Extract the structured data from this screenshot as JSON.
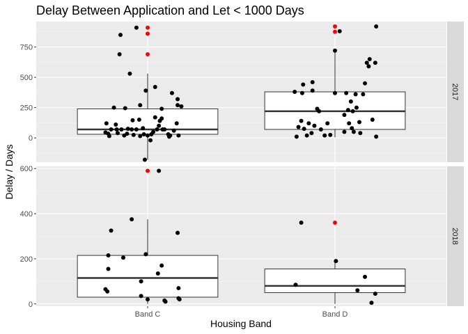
{
  "chart_data": {
    "type": "box-jitter",
    "title": "Delay Between Application and Let < 1000 Days",
    "xlabel": "Housing Band",
    "ylabel": "Delay / Days",
    "categories": [
      "Band C",
      "Band D"
    ],
    "outlier_color": "#ff0000",
    "point_color": "#000000",
    "panels": [
      {
        "facet": "2017",
        "ylim": [
          -200,
          960
        ],
        "yticks": [
          0,
          250,
          500,
          750
        ],
        "boxes": [
          {
            "category": "Band C",
            "q1": 30,
            "median": 70,
            "q3": 240,
            "whisker_low": -180,
            "whisker_high": 530
          },
          {
            "category": "Band D",
            "q1": 70,
            "median": 220,
            "q3": 380,
            "whisker_low": 5,
            "whisker_high": 720
          }
        ],
        "outliers": [
          {
            "category": "Band C",
            "values": [
              910,
              860,
              690
            ]
          },
          {
            "category": "Band D",
            "values": [
              920,
              875
            ]
          }
        ],
        "points": [
          {
            "category": "Band C",
            "x": -0.44,
            "y": 120
          },
          {
            "category": "Band C",
            "x": -0.45,
            "y": 45
          },
          {
            "category": "Band C",
            "x": -0.42,
            "y": 35
          },
          {
            "category": "Band C",
            "x": -0.41,
            "y": 15
          },
          {
            "category": "Band C",
            "x": -0.39,
            "y": 70
          },
          {
            "category": "Band C",
            "x": -0.36,
            "y": 250
          },
          {
            "category": "Band C",
            "x": -0.34,
            "y": 110
          },
          {
            "category": "Band C",
            "x": -0.33,
            "y": 70
          },
          {
            "category": "Band C",
            "x": -0.32,
            "y": 40
          },
          {
            "category": "Band C",
            "x": -0.3,
            "y": 690
          },
          {
            "category": "Band C",
            "x": -0.29,
            "y": 850
          },
          {
            "category": "Band C",
            "x": -0.28,
            "y": 70
          },
          {
            "category": "Band C",
            "x": -0.25,
            "y": 20
          },
          {
            "category": "Band C",
            "x": -0.24,
            "y": 245
          },
          {
            "category": "Band C",
            "x": -0.22,
            "y": 35
          },
          {
            "category": "Band C",
            "x": -0.21,
            "y": 75
          },
          {
            "category": "Band C",
            "x": -0.19,
            "y": 530
          },
          {
            "category": "Band C",
            "x": -0.17,
            "y": 70
          },
          {
            "category": "Band C",
            "x": -0.16,
            "y": 145
          },
          {
            "category": "Band C",
            "x": -0.15,
            "y": 25
          },
          {
            "category": "Band C",
            "x": -0.12,
            "y": 70
          },
          {
            "category": "Band C",
            "x": -0.12,
            "y": 910
          },
          {
            "category": "Band C",
            "x": -0.09,
            "y": 150
          },
          {
            "category": "Band C",
            "x": -0.08,
            "y": 270
          },
          {
            "category": "Band C",
            "x": -0.08,
            "y": 15
          },
          {
            "category": "Band C",
            "x": -0.05,
            "y": 80
          },
          {
            "category": "Band C",
            "x": -0.04,
            "y": 30
          },
          {
            "category": "Band C",
            "x": -0.03,
            "y": -180
          },
          {
            "category": "Band C",
            "x": -0.02,
            "y": 390
          },
          {
            "category": "Band C",
            "x": 0.0,
            "y": 20
          },
          {
            "category": "Band C",
            "x": 0.03,
            "y": -20
          },
          {
            "category": "Band C",
            "x": 0.04,
            "y": 30
          },
          {
            "category": "Band C",
            "x": 0.06,
            "y": 50
          },
          {
            "category": "Band C",
            "x": 0.08,
            "y": 170
          },
          {
            "category": "Band C",
            "x": 0.08,
            "y": 420
          },
          {
            "category": "Band C",
            "x": 0.1,
            "y": 70
          },
          {
            "category": "Band C",
            "x": 0.12,
            "y": 100
          },
          {
            "category": "Band C",
            "x": 0.13,
            "y": 140
          },
          {
            "category": "Band C",
            "x": 0.15,
            "y": 160
          },
          {
            "category": "Band C",
            "x": 0.15,
            "y": 240
          },
          {
            "category": "Band C",
            "x": 0.16,
            "y": 70
          },
          {
            "category": "Band C",
            "x": 0.18,
            "y": 70
          },
          {
            "category": "Band C",
            "x": 0.22,
            "y": 30
          },
          {
            "category": "Band C",
            "x": 0.23,
            "y": 10
          },
          {
            "category": "Band C",
            "x": 0.24,
            "y": 20
          },
          {
            "category": "Band C",
            "x": 0.26,
            "y": 370
          },
          {
            "category": "Band C",
            "x": 0.28,
            "y": 60
          },
          {
            "category": "Band C",
            "x": 0.31,
            "y": 120
          },
          {
            "category": "Band C",
            "x": 0.32,
            "y": 270
          },
          {
            "category": "Band C",
            "x": 0.32,
            "y": 320
          },
          {
            "category": "Band C",
            "x": 0.33,
            "y": 20
          },
          {
            "category": "Band C",
            "x": 0.36,
            "y": 260
          },
          {
            "category": "Band D",
            "x": -0.43,
            "y": 380
          },
          {
            "category": "Band D",
            "x": -0.41,
            "y": 10
          },
          {
            "category": "Band D",
            "x": -0.39,
            "y": 90
          },
          {
            "category": "Band D",
            "x": -0.36,
            "y": 140
          },
          {
            "category": "Band D",
            "x": -0.35,
            "y": 370
          },
          {
            "category": "Band D",
            "x": -0.34,
            "y": 440
          },
          {
            "category": "Band D",
            "x": -0.33,
            "y": 75
          },
          {
            "category": "Band D",
            "x": -0.3,
            "y": 20
          },
          {
            "category": "Band D",
            "x": -0.28,
            "y": 120
          },
          {
            "category": "Band D",
            "x": -0.25,
            "y": 40
          },
          {
            "category": "Band D",
            "x": -0.24,
            "y": 460
          },
          {
            "category": "Band D",
            "x": -0.24,
            "y": 390
          },
          {
            "category": "Band D",
            "x": -0.22,
            "y": 100
          },
          {
            "category": "Band D",
            "x": -0.19,
            "y": 240
          },
          {
            "category": "Band D",
            "x": -0.17,
            "y": 220
          },
          {
            "category": "Band D",
            "x": -0.15,
            "y": 70
          },
          {
            "category": "Band D",
            "x": -0.11,
            "y": 20
          },
          {
            "category": "Band D",
            "x": -0.08,
            "y": 120
          },
          {
            "category": "Band D",
            "x": -0.05,
            "y": 25
          },
          {
            "category": "Band D",
            "x": 0.0,
            "y": 370
          },
          {
            "category": "Band D",
            "x": 0.0,
            "y": 720
          },
          {
            "category": "Band D",
            "x": 0.05,
            "y": 880
          },
          {
            "category": "Band D",
            "x": 0.1,
            "y": 190
          },
          {
            "category": "Band D",
            "x": 0.1,
            "y": 50
          },
          {
            "category": "Band D",
            "x": 0.12,
            "y": 370
          },
          {
            "category": "Band D",
            "x": 0.14,
            "y": 230
          },
          {
            "category": "Band D",
            "x": 0.15,
            "y": 120
          },
          {
            "category": "Band D",
            "x": 0.17,
            "y": 300
          },
          {
            "category": "Band D",
            "x": 0.18,
            "y": 80
          },
          {
            "category": "Band D",
            "x": 0.19,
            "y": 220
          },
          {
            "category": "Band D",
            "x": 0.2,
            "y": 50
          },
          {
            "category": "Band D",
            "x": 0.22,
            "y": 360
          },
          {
            "category": "Band D",
            "x": 0.23,
            "y": 250
          },
          {
            "category": "Band D",
            "x": 0.26,
            "y": 130
          },
          {
            "category": "Band D",
            "x": 0.27,
            "y": 40
          },
          {
            "category": "Band D",
            "x": 0.3,
            "y": 360
          },
          {
            "category": "Band D",
            "x": 0.32,
            "y": 450
          },
          {
            "category": "Band D",
            "x": 0.34,
            "y": 620
          },
          {
            "category": "Band D",
            "x": 0.36,
            "y": 590
          },
          {
            "category": "Band D",
            "x": 0.37,
            "y": 650
          },
          {
            "category": "Band D",
            "x": 0.4,
            "y": 150
          },
          {
            "category": "Band D",
            "x": 0.43,
            "y": 620
          },
          {
            "category": "Band D",
            "x": 0.44,
            "y": 920
          },
          {
            "category": "Band D",
            "x": 0.44,
            "y": 10
          }
        ]
      },
      {
        "facet": "2018",
        "ylim": [
          -10,
          610
        ],
        "yticks": [
          0,
          200,
          400,
          600
        ],
        "boxes": [
          {
            "category": "Band C",
            "q1": 30,
            "median": 115,
            "q3": 215,
            "whisker_low": 0,
            "whisker_high": 375
          },
          {
            "category": "Band D",
            "q1": 50,
            "median": 80,
            "q3": 155,
            "whisker_low": 0,
            "whisker_high": 190
          }
        ],
        "outliers": [
          {
            "category": "Band C",
            "values": [
              590
            ]
          },
          {
            "category": "Band D",
            "values": [
              360
            ]
          }
        ],
        "points": [
          {
            "category": "Band C",
            "x": -0.45,
            "y": 65
          },
          {
            "category": "Band C",
            "x": -0.43,
            "y": 55
          },
          {
            "category": "Band C",
            "x": -0.42,
            "y": 155
          },
          {
            "category": "Band C",
            "x": -0.42,
            "y": 215
          },
          {
            "category": "Band C",
            "x": -0.39,
            "y": 325
          },
          {
            "category": "Band C",
            "x": -0.26,
            "y": 205
          },
          {
            "category": "Band C",
            "x": -0.17,
            "y": 375
          },
          {
            "category": "Band C",
            "x": -0.07,
            "y": 35
          },
          {
            "category": "Band C",
            "x": -0.07,
            "y": 100
          },
          {
            "category": "Band C",
            "x": -0.02,
            "y": 220
          },
          {
            "category": "Band C",
            "x": 0.0,
            "y": 20
          },
          {
            "category": "Band C",
            "x": 0.11,
            "y": 135
          },
          {
            "category": "Band C",
            "x": 0.12,
            "y": 590
          },
          {
            "category": "Band C",
            "x": 0.15,
            "y": 170
          },
          {
            "category": "Band C",
            "x": 0.18,
            "y": 15
          },
          {
            "category": "Band C",
            "x": 0.19,
            "y": 10
          },
          {
            "category": "Band C",
            "x": 0.32,
            "y": 315
          },
          {
            "category": "Band C",
            "x": 0.33,
            "y": 25
          },
          {
            "category": "Band C",
            "x": 0.33,
            "y": 70
          },
          {
            "category": "Band C",
            "x": 0.34,
            "y": 20
          },
          {
            "category": "Band D",
            "x": -0.42,
            "y": 85
          },
          {
            "category": "Band D",
            "x": -0.36,
            "y": 360
          },
          {
            "category": "Band D",
            "x": 0.01,
            "y": 190
          },
          {
            "category": "Band D",
            "x": 0.24,
            "y": 60
          },
          {
            "category": "Band D",
            "x": 0.32,
            "y": 120
          },
          {
            "category": "Band D",
            "x": 0.39,
            "y": 5
          },
          {
            "category": "Band D",
            "x": 0.43,
            "y": 45
          }
        ]
      }
    ]
  }
}
